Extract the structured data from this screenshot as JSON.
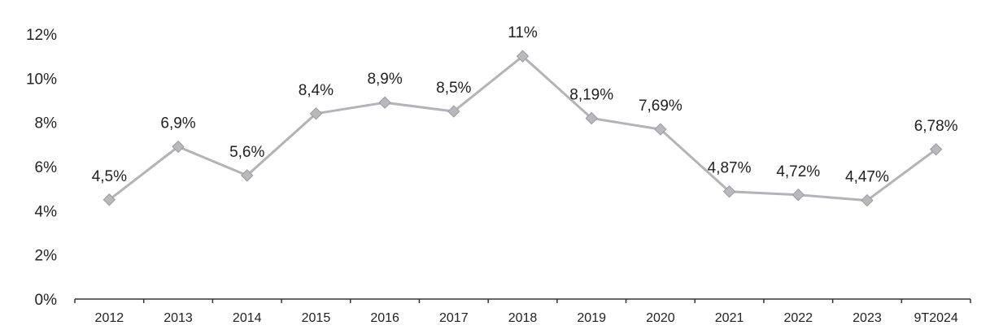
{
  "chart_data": {
    "type": "line",
    "title": "",
    "xlabel": "",
    "ylabel": "",
    "categories": [
      "2012",
      "2013",
      "2014",
      "2015",
      "2016",
      "2017",
      "2018",
      "2019",
      "2020",
      "2021",
      "2022",
      "2023",
      "9T2024"
    ],
    "series": [
      {
        "values": [
          4.5,
          6.9,
          5.6,
          8.4,
          8.9,
          8.5,
          11,
          8.19,
          7.69,
          4.87,
          4.72,
          4.47,
          6.78
        ],
        "labels": [
          "4,5%",
          "6,9%",
          "5,6%",
          "8,4%",
          "8,9%",
          "8,5%",
          "11%",
          "8,19%",
          "7,69%",
          "4,87%",
          "4,72%",
          "4,47%",
          "6,78%"
        ],
        "color": "#b3b3b8"
      }
    ],
    "ylim": [
      0,
      12
    ],
    "yticks": [
      0,
      2,
      4,
      6,
      8,
      10,
      12
    ],
    "ytick_labels": [
      "0%",
      "2%",
      "4%",
      "6%",
      "8%",
      "10%",
      "12%"
    ],
    "grid": false,
    "legend": "none"
  }
}
